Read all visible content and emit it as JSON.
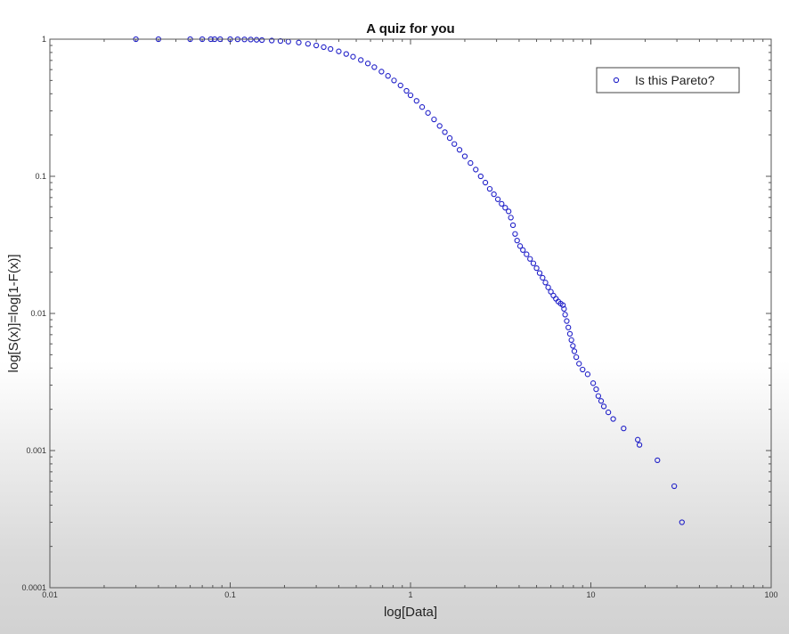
{
  "chart_data": {
    "type": "scatter",
    "title": "A quiz for you",
    "xlabel": "log[Data]",
    "ylabel": "log[S(x)]=log[1-F(x)]",
    "xscale": "log",
    "yscale": "log",
    "xlim": [
      0.01,
      100
    ],
    "ylim": [
      0.0001,
      1
    ],
    "x_ticks": [
      {
        "value": 0.01,
        "label": "0.01"
      },
      {
        "value": 0.1,
        "label": "0.1"
      },
      {
        "value": 1,
        "label": "1"
      },
      {
        "value": 10,
        "label": "10"
      },
      {
        "value": 100,
        "label": "100"
      }
    ],
    "y_ticks": [
      {
        "value": 0.0001,
        "label": "0.0001"
      },
      {
        "value": 0.001,
        "label": "0.001"
      },
      {
        "value": 0.01,
        "label": "0.01"
      },
      {
        "value": 0.1,
        "label": "0.1"
      },
      {
        "value": 1,
        "label": "1"
      }
    ],
    "grid": false,
    "legend": {
      "placement": "top-right",
      "entries": [
        "Is this Pareto?"
      ]
    },
    "marker": {
      "shape": "open-circle",
      "color": "#2020c8"
    },
    "series": [
      {
        "name": "Is this Pareto?",
        "color": "#2020c8",
        "x": [
          0.03,
          0.04,
          0.06,
          0.07,
          0.078,
          0.082,
          0.088,
          0.1,
          0.11,
          0.12,
          0.13,
          0.14,
          0.15,
          0.17,
          0.19,
          0.21,
          0.24,
          0.27,
          0.3,
          0.33,
          0.36,
          0.4,
          0.44,
          0.48,
          0.53,
          0.58,
          0.63,
          0.69,
          0.75,
          0.81,
          0.88,
          0.95,
          1.0,
          1.08,
          1.16,
          1.25,
          1.35,
          1.45,
          1.55,
          1.65,
          1.75,
          1.87,
          2.0,
          2.15,
          2.3,
          2.45,
          2.6,
          2.75,
          2.9,
          3.05,
          3.2,
          3.35,
          3.5,
          3.6,
          3.7,
          3.8,
          3.9,
          4.05,
          4.2,
          4.4,
          4.6,
          4.8,
          5.0,
          5.2,
          5.4,
          5.6,
          5.8,
          6.0,
          6.2,
          6.4,
          6.6,
          6.8,
          7.0,
          7.1,
          7.2,
          7.35,
          7.5,
          7.65,
          7.8,
          7.95,
          8.1,
          8.3,
          8.6,
          9.0,
          9.6,
          10.3,
          10.7,
          11.0,
          11.4,
          11.8,
          12.5,
          13.3,
          15.2,
          18.2,
          18.6,
          23.4,
          29.0,
          32.0
        ],
        "y": [
          1,
          1,
          1,
          1,
          1,
          1,
          1,
          1,
          0.998,
          0.996,
          0.994,
          0.99,
          0.985,
          0.978,
          0.97,
          0.96,
          0.945,
          0.925,
          0.9,
          0.875,
          0.848,
          0.815,
          0.78,
          0.745,
          0.705,
          0.665,
          0.625,
          0.58,
          0.54,
          0.5,
          0.46,
          0.42,
          0.39,
          0.355,
          0.32,
          0.29,
          0.26,
          0.233,
          0.21,
          0.19,
          0.172,
          0.156,
          0.14,
          0.125,
          0.112,
          0.1,
          0.09,
          0.081,
          0.074,
          0.068,
          0.063,
          0.059,
          0.0555,
          0.05,
          0.044,
          0.038,
          0.034,
          0.031,
          0.029,
          0.027,
          0.025,
          0.0232,
          0.0214,
          0.0197,
          0.0182,
          0.0168,
          0.0155,
          0.0144,
          0.0135,
          0.0128,
          0.0122,
          0.0118,
          0.0115,
          0.0108,
          0.0098,
          0.0088,
          0.0079,
          0.0071,
          0.0064,
          0.0058,
          0.0053,
          0.0048,
          0.0043,
          0.0039,
          0.0036,
          0.0031,
          0.0028,
          0.0025,
          0.0023,
          0.0021,
          0.0019,
          0.0017,
          0.00145,
          0.0012,
          0.0011,
          0.00085,
          0.00055,
          0.0003
        ]
      }
    ]
  }
}
